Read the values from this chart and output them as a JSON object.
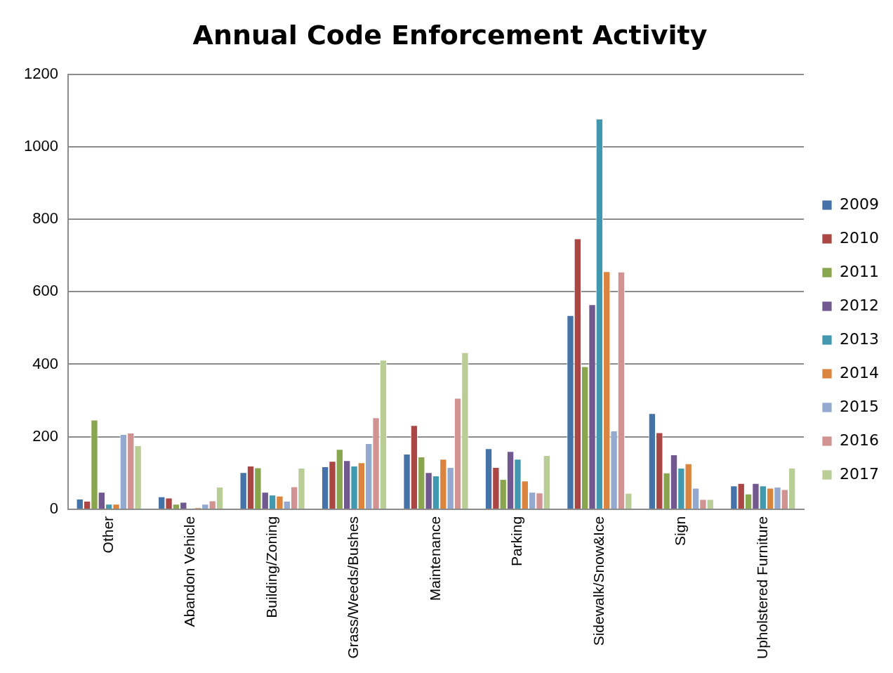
{
  "chart_data": {
    "type": "bar",
    "title": "Annual Code Enforcement Activity",
    "categories": [
      "Other",
      "Abandon Vehicle",
      "Building/Zoning",
      "Grass/Weeds/Bushes",
      "Maintenance",
      "Parking",
      "Sidewalk/Snow&Ice",
      "Sign",
      "Upholstered Furniture"
    ],
    "series": [
      {
        "name": "2009",
        "color": "#4572a7",
        "values": [
          29,
          35,
          102,
          118,
          153,
          168,
          535,
          265,
          65
        ]
      },
      {
        "name": "2010",
        "color": "#aa4643",
        "values": [
          23,
          32,
          120,
          133,
          232,
          116,
          747,
          212,
          72
        ]
      },
      {
        "name": "2011",
        "color": "#89a54e",
        "values": [
          247,
          15,
          115,
          166,
          145,
          83,
          394,
          101,
          43
        ]
      },
      {
        "name": "2012",
        "color": "#71588f",
        "values": [
          48,
          20,
          48,
          135,
          102,
          160,
          565,
          151,
          72
        ]
      },
      {
        "name": "2013",
        "color": "#4198af",
        "values": [
          15,
          2,
          40,
          120,
          93,
          139,
          1077,
          114,
          65
        ]
      },
      {
        "name": "2014",
        "color": "#db843d",
        "values": [
          15,
          4,
          37,
          129,
          139,
          79,
          656,
          126,
          59
        ]
      },
      {
        "name": "2015",
        "color": "#93a9cf",
        "values": [
          207,
          15,
          23,
          182,
          116,
          48,
          217,
          59,
          62
        ]
      },
      {
        "name": "2016",
        "color": "#d19392",
        "values": [
          211,
          24,
          63,
          253,
          307,
          46,
          655,
          28,
          55
        ]
      },
      {
        "name": "2017",
        "color": "#b9cd96",
        "values": [
          176,
          62,
          114,
          412,
          433,
          149,
          45,
          28,
          114
        ]
      }
    ],
    "ylim": [
      0,
      1200
    ],
    "yticks": [
      0,
      200,
      400,
      600,
      800,
      1000,
      1200
    ],
    "grid": "y",
    "legend": "right"
  }
}
